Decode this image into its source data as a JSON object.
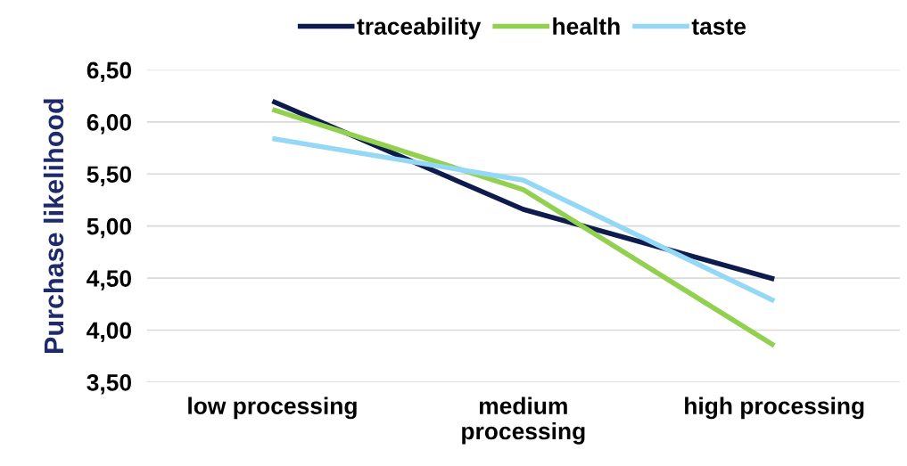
{
  "chart_data": {
    "type": "line",
    "ylabel": "Purchase likelihood",
    "categories": [
      "low processing",
      "medium\nprocessing",
      "high processing"
    ],
    "series": [
      {
        "name": "traceability",
        "color": "#0e1b4d",
        "values": [
          6.2,
          5.16,
          4.49
        ]
      },
      {
        "name": "health",
        "color": "#92d050",
        "values": [
          6.12,
          5.35,
          3.85
        ]
      },
      {
        "name": "taste",
        "color": "#94d8f6",
        "values": [
          5.84,
          5.44,
          4.28
        ]
      }
    ],
    "ylim": [
      3.5,
      6.5
    ],
    "yticks": [
      {
        "value": 3.5,
        "label": "3,50"
      },
      {
        "value": 4.0,
        "label": "4,00"
      },
      {
        "value": 4.5,
        "label": "4,50"
      },
      {
        "value": 5.0,
        "label": "5,00"
      },
      {
        "value": 5.5,
        "label": "5,50"
      },
      {
        "value": 6.0,
        "label": "6,00"
      },
      {
        "value": 6.5,
        "label": "6,50"
      }
    ],
    "grid": "y",
    "legend": "top",
    "marker": "none",
    "line_style": "solid"
  }
}
